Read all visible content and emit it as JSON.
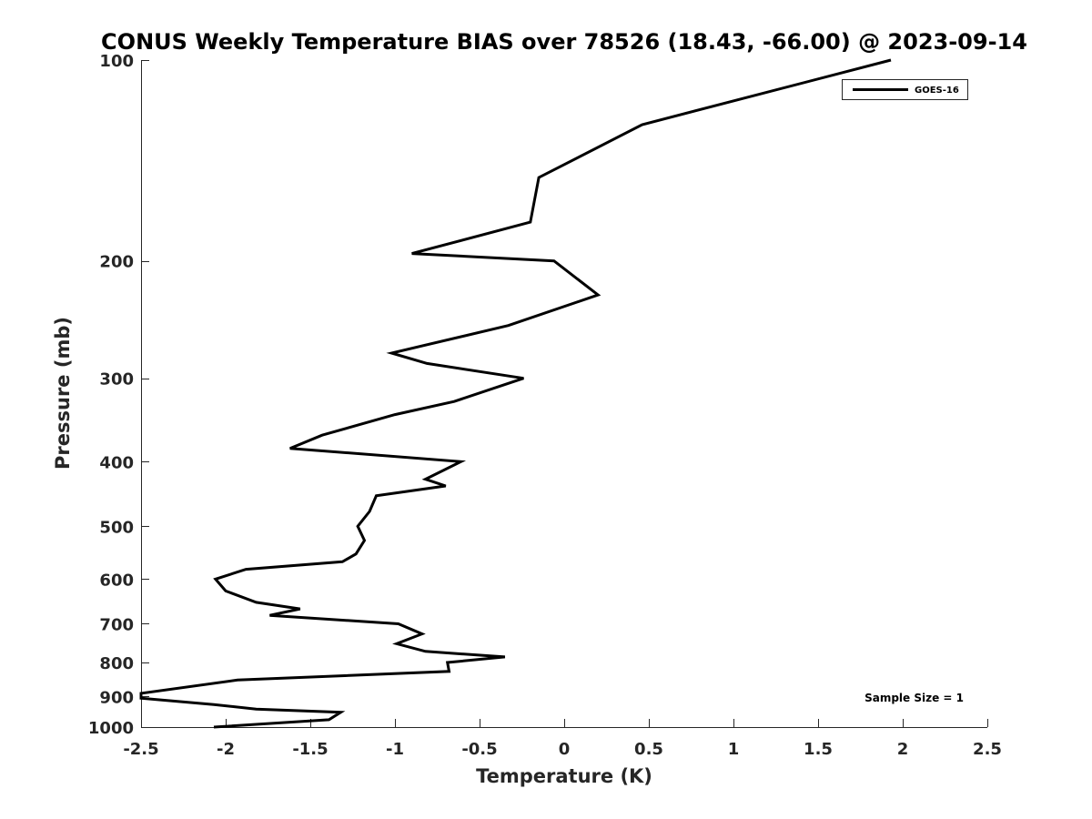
{
  "chart_data": {
    "type": "line",
    "title": "CONUS Weekly Temperature BIAS over 78526 (18.43, -66.00) @ 2023-09-14",
    "xlabel": "Temperature (K)",
    "ylabel": "Pressure (mb)",
    "xlim": [
      -2.5,
      2.5
    ],
    "ylim": [
      100,
      1000
    ],
    "y_scale": "log",
    "y_reversed": true,
    "x_ticks": [
      -2.5,
      -2,
      -1.5,
      -1,
      -0.5,
      0,
      0.5,
      1,
      1.5,
      2,
      2.5
    ],
    "x_tick_labels": [
      "-2.5",
      "-2",
      "-1.5",
      "-1",
      "-0.5",
      "0",
      "0.5",
      "1",
      "1.5",
      "2",
      "2.5"
    ],
    "y_ticks": [
      100,
      200,
      300,
      400,
      500,
      600,
      700,
      800,
      900,
      1000
    ],
    "y_tick_labels": [
      "100",
      "200",
      "300",
      "400",
      "500",
      "600",
      "700",
      "800",
      "900",
      "1000"
    ],
    "grid": false,
    "legend": {
      "position": "top-right",
      "entries": [
        "GOES-16"
      ]
    },
    "annotation": "Sample Size = 1",
    "series": [
      {
        "name": "GOES-16",
        "color": "#000000",
        "points": [
          [
            1.93,
            100
          ],
          [
            0.46,
            125
          ],
          [
            -0.15,
            150
          ],
          [
            -0.2,
            175
          ],
          [
            -0.9,
            195
          ],
          [
            -0.06,
            200
          ],
          [
            0.2,
            225
          ],
          [
            -0.33,
            250
          ],
          [
            -1.02,
            275
          ],
          [
            -0.81,
            285
          ],
          [
            -0.24,
            300
          ],
          [
            -0.65,
            325
          ],
          [
            -1.0,
            340
          ],
          [
            -1.43,
            365
          ],
          [
            -1.62,
            382
          ],
          [
            -0.61,
            400
          ],
          [
            -0.82,
            425
          ],
          [
            -0.7,
            435
          ],
          [
            -1.11,
            450
          ],
          [
            -1.15,
            475
          ],
          [
            -1.22,
            500
          ],
          [
            -1.18,
            525
          ],
          [
            -1.23,
            550
          ],
          [
            -1.31,
            565
          ],
          [
            -1.88,
            580
          ],
          [
            -2.06,
            600
          ],
          [
            -2.0,
            625
          ],
          [
            -1.82,
            650
          ],
          [
            -1.56,
            665
          ],
          [
            -1.74,
            680
          ],
          [
            -0.98,
            700
          ],
          [
            -0.84,
            725
          ],
          [
            -0.99,
            750
          ],
          [
            -0.82,
            770
          ],
          [
            -0.35,
            785
          ],
          [
            -0.69,
            800
          ],
          [
            -0.68,
            825
          ],
          [
            -1.93,
            850
          ],
          [
            -2.5,
            890
          ],
          [
            -2.5,
            905
          ],
          [
            -2.07,
            925
          ],
          [
            -1.82,
            940
          ],
          [
            -1.32,
            950
          ],
          [
            -1.39,
            975
          ],
          [
            -2.07,
            1000
          ]
        ]
      }
    ]
  }
}
